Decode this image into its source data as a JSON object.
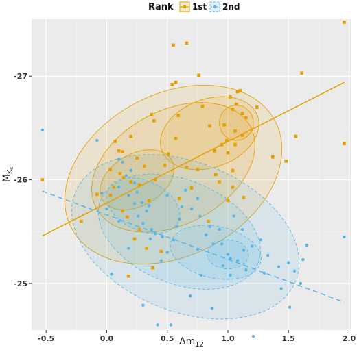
{
  "chart_data": {
    "type": "scatter",
    "title": "",
    "legend": {
      "title": "Rank",
      "position": "top",
      "entries": [
        {
          "label": "1st",
          "color": "#E69F00"
        },
        {
          "label": "2nd",
          "color": "#56B4E9"
        }
      ]
    },
    "xlabel_base": "Δm",
    "xlabel_sub": "12",
    "ylabel_base": "M",
    "ylabel_sub": "K",
    "ylabel_subsub": "s",
    "xlim": [
      -0.62,
      2.02
    ],
    "ylim": [
      -24.55,
      -27.55
    ],
    "y_reversed": true,
    "x_ticks": [
      {
        "value": -0.5,
        "label": "-0.5"
      },
      {
        "value": 0.0,
        "label": "0.0"
      },
      {
        "value": 0.5,
        "label": "0.5"
      },
      {
        "value": 1.0,
        "label": "1.0"
      },
      {
        "value": 1.5,
        "label": "1.5"
      },
      {
        "value": 2.0,
        "label": "2.0"
      }
    ],
    "y_ticks": [
      {
        "value": -25,
        "label": "-25"
      },
      {
        "value": -26,
        "label": "-26"
      },
      {
        "value": -27,
        "label": "-27"
      }
    ],
    "grid": true,
    "series": [
      {
        "name": "1st",
        "color": "#E69F00",
        "marker": "square",
        "points": [
          [
            -0.53,
            -26.0
          ],
          [
            0.37,
            -26.63
          ],
          [
            0.39,
            -26.57
          ],
          [
            0.59,
            -26.62
          ],
          [
            0.57,
            -26.94
          ],
          [
            0.66,
            -27.32
          ],
          [
            0.55,
            -27.3
          ],
          [
            0.54,
            -26.92
          ],
          [
            0.79,
            -26.71
          ],
          [
            0.85,
            -26.52
          ],
          [
            0.89,
            -26.28
          ],
          [
            0.95,
            -26.34
          ],
          [
            1.0,
            -26.26
          ],
          [
            0.99,
            -26.38
          ],
          [
            1.06,
            -26.47
          ],
          [
            0.97,
            -26.53
          ],
          [
            1.04,
            -26.68
          ],
          [
            1.07,
            -26.73
          ],
          [
            1.08,
            -26.85
          ],
          [
            1.1,
            -26.86
          ],
          [
            1.02,
            -26.8
          ],
          [
            1.12,
            -26.64
          ],
          [
            1.12,
            -26.43
          ],
          [
            1.04,
            -26.09
          ],
          [
            1.06,
            -26.34
          ],
          [
            1.15,
            -26.6
          ],
          [
            1.24,
            -26.7
          ],
          [
            1.37,
            -26.22
          ],
          [
            1.48,
            -26.18
          ],
          [
            1.56,
            -26.42
          ],
          [
            1.61,
            -27.03
          ],
          [
            1.96,
            -27.52
          ],
          [
            1.96,
            -26.35
          ],
          [
            0.76,
            -27.01
          ],
          [
            0.75,
            -26.1
          ],
          [
            0.9,
            -26.05
          ],
          [
            0.93,
            -25.98
          ],
          [
            0.66,
            -26.12
          ],
          [
            0.57,
            -26.4
          ],
          [
            0.51,
            -26.25
          ],
          [
            0.48,
            -26.14
          ],
          [
            0.4,
            -26.0
          ],
          [
            0.35,
            -25.8
          ],
          [
            0.31,
            -26.13
          ],
          [
            0.25,
            -26.21
          ],
          [
            0.2,
            -26.42
          ],
          [
            0.13,
            -26.27
          ],
          [
            0.1,
            -26.28
          ],
          [
            0.11,
            -26.06
          ],
          [
            0.14,
            -26.02
          ],
          [
            0.06,
            -25.93
          ],
          [
            0.03,
            -25.85
          ],
          [
            0.13,
            -25.7
          ],
          [
            0.17,
            -25.64
          ],
          [
            0.27,
            -25.52
          ],
          [
            0.23,
            -25.43
          ],
          [
            0.33,
            -25.34
          ],
          [
            0.38,
            -25.15
          ],
          [
            0.45,
            -25.31
          ],
          [
            0.18,
            -25.07
          ],
          [
            -0.21,
            -25.6
          ],
          [
            -0.08,
            -25.86
          ],
          [
            0.03,
            -26.1
          ],
          [
            0.07,
            -26.37
          ],
          [
            0.27,
            -25.95
          ],
          [
            0.2,
            -25.98
          ],
          [
            0.6,
            -25.82
          ],
          [
            0.7,
            -25.92
          ],
          [
            0.84,
            -25.6
          ],
          [
            1.0,
            -25.8
          ],
          [
            1.13,
            -25.83
          ],
          [
            1.04,
            -25.93
          ]
        ]
      },
      {
        "name": "2nd",
        "color": "#56B4E9",
        "marker": "circle",
        "points": [
          [
            -0.53,
            -26.48
          ],
          [
            -0.08,
            -26.38
          ],
          [
            0.1,
            -26.2
          ],
          [
            0.13,
            -26.17
          ],
          [
            0.2,
            -26.09
          ],
          [
            0.23,
            -25.97
          ],
          [
            0.25,
            -25.88
          ],
          [
            0.29,
            -25.78
          ],
          [
            0.33,
            -25.7
          ],
          [
            0.37,
            -25.52
          ],
          [
            0.4,
            -25.48
          ],
          [
            0.46,
            -25.45
          ],
          [
            0.55,
            -25.42
          ],
          [
            0.6,
            -25.62
          ],
          [
            0.62,
            -25.74
          ],
          [
            0.7,
            -25.72
          ],
          [
            0.77,
            -25.65
          ],
          [
            0.85,
            -25.55
          ],
          [
            0.93,
            -25.52
          ],
          [
            0.95,
            -25.38
          ],
          [
            1.0,
            -25.28
          ],
          [
            1.02,
            -25.24
          ],
          [
            1.08,
            -25.22
          ],
          [
            1.13,
            -25.32
          ],
          [
            1.2,
            -25.36
          ],
          [
            1.27,
            -25.42
          ],
          [
            1.33,
            -25.27
          ],
          [
            1.42,
            -25.16
          ],
          [
            1.5,
            -25.2
          ],
          [
            1.55,
            -25.12
          ],
          [
            1.6,
            -25.0
          ],
          [
            1.62,
            -25.23
          ],
          [
            1.65,
            -25.37
          ],
          [
            1.96,
            -25.45
          ],
          [
            1.96,
            -24.3
          ],
          [
            0.42,
            -24.6
          ],
          [
            0.53,
            -24.6
          ],
          [
            0.87,
            -24.76
          ],
          [
            1.21,
            -24.49
          ],
          [
            1.44,
            -24.95
          ],
          [
            1.51,
            -24.77
          ],
          [
            0.3,
            -24.79
          ],
          [
            0.04,
            -25.09
          ],
          [
            0.18,
            -25.34
          ],
          [
            0.1,
            -25.6
          ],
          [
            0.0,
            -25.72
          ],
          [
            -0.04,
            -25.87
          ],
          [
            0.1,
            -25.93
          ],
          [
            0.16,
            -26.04
          ],
          [
            0.26,
            -25.65
          ],
          [
            0.35,
            -25.75
          ],
          [
            0.5,
            -25.85
          ],
          [
            0.65,
            -25.9
          ],
          [
            0.75,
            -25.82
          ],
          [
            0.82,
            -25.47
          ],
          [
            0.88,
            -25.38
          ],
          [
            0.96,
            -25.17
          ],
          [
            1.02,
            -25.08
          ],
          [
            1.15,
            -25.13
          ],
          [
            0.78,
            -25.08
          ],
          [
            0.69,
            -24.88
          ],
          [
            0.75,
            -25.33
          ],
          [
            0.5,
            -25.3
          ],
          [
            0.45,
            -25.22
          ],
          [
            0.36,
            -25.43
          ],
          [
            0.3,
            -25.58
          ],
          [
            0.23,
            -25.77
          ],
          [
            0.18,
            -25.85
          ],
          [
            1.12,
            -25.52
          ],
          [
            1.3,
            -25.1
          ],
          [
            1.05,
            -25.65
          ],
          [
            0.58,
            -25.55
          ]
        ]
      }
    ],
    "fit_lines": [
      {
        "series": "1st",
        "color": "#E69F00",
        "dash": false,
        "x": [
          -0.53,
          1.96
        ],
        "y": [
          -25.46,
          -26.94
        ]
      },
      {
        "series": "2nd",
        "color": "#56B4E9",
        "dash": true,
        "x": [
          -0.53,
          1.96
        ],
        "y": [
          -25.89,
          -24.82
        ]
      }
    ],
    "density_contours": [
      {
        "series": "1st",
        "color": "#E69F00",
        "dash": false,
        "levels": [
          {
            "cx": 0.55,
            "cy": -26.05,
            "rx": 0.95,
            "ry": 0.78,
            "rot": -28
          },
          {
            "cx": 0.55,
            "cy": -26.12,
            "rx": 0.72,
            "ry": 0.55,
            "rot": -28
          },
          {
            "cx": 0.85,
            "cy": -26.45,
            "rx": 0.42,
            "ry": 0.33,
            "rot": -20
          },
          {
            "cx": 0.25,
            "cy": -26.0,
            "rx": 0.33,
            "ry": 0.25,
            "rot": -30
          },
          {
            "cx": 1.07,
            "cy": -26.55,
            "rx": 0.14,
            "ry": 0.17,
            "rot": 0
          }
        ]
      },
      {
        "series": "2nd",
        "color": "#56B4E9",
        "dash": true,
        "levels": [
          {
            "cx": 0.65,
            "cy": -25.45,
            "rx": 0.98,
            "ry": 0.72,
            "rot": 22
          },
          {
            "cx": 0.6,
            "cy": -25.5,
            "rx": 0.7,
            "ry": 0.5,
            "rot": 22
          },
          {
            "cx": 0.9,
            "cy": -25.3,
            "rx": 0.38,
            "ry": 0.25,
            "rot": 12
          },
          {
            "cx": 0.3,
            "cy": -25.75,
            "rx": 0.32,
            "ry": 0.24,
            "rot": 25
          },
          {
            "cx": 1.0,
            "cy": -25.28,
            "rx": 0.17,
            "ry": 0.14,
            "rot": 0
          }
        ]
      }
    ]
  }
}
